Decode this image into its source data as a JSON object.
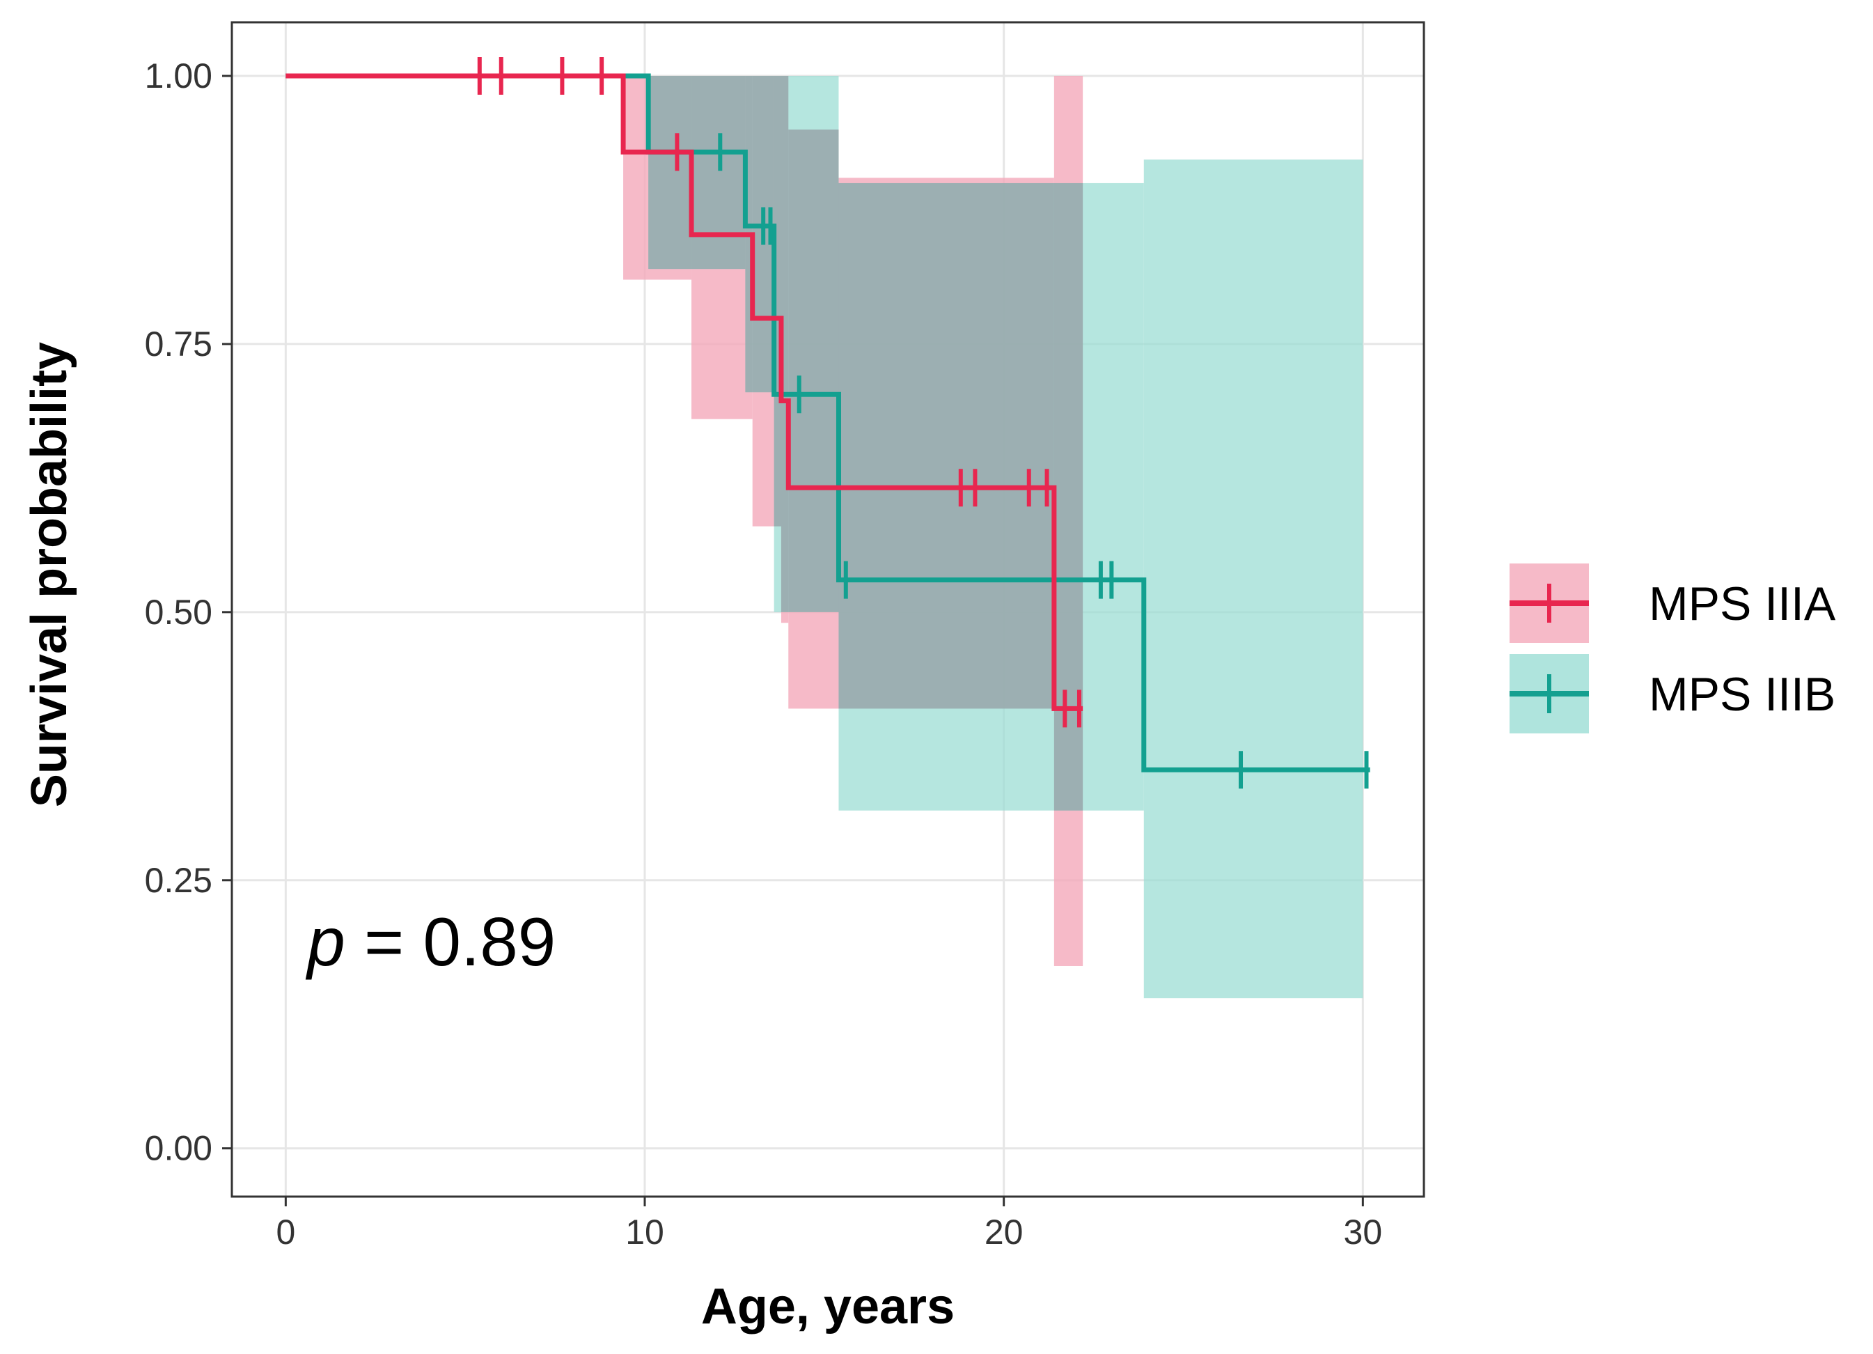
{
  "chart_data": {
    "type": "line",
    "subtype": "kaplan-meier survival curve with confidence bands",
    "title": "",
    "xlabel": "Age, years",
    "ylabel": "Survival probability",
    "xlim": [
      -1.5,
      31.7
    ],
    "ylim": [
      -0.045,
      1.05
    ],
    "x_ticks": [
      0,
      10,
      20,
      30
    ],
    "y_ticks": [
      0.0,
      0.25,
      0.5,
      0.75,
      1.0
    ],
    "x_tick_labels": [
      "0",
      "10",
      "20",
      "30"
    ],
    "y_tick_labels": [
      "0.00",
      "0.25",
      "0.50",
      "0.75",
      "1.00"
    ],
    "grid": true,
    "legend_position": "right",
    "annotation": {
      "italic_part": "p",
      "text": " = 0.89",
      "x": 0.6,
      "y": 0.19
    },
    "series": [
      {
        "name": "MPS IIIA",
        "color": "#e8264f",
        "band_color": "#f3a7b8",
        "steps": [
          [
            0,
            1.0
          ],
          [
            9.4,
            0.929
          ],
          [
            11.3,
            0.852
          ],
          [
            13.0,
            0.774
          ],
          [
            13.8,
            0.697
          ],
          [
            14.0,
            0.616
          ],
          [
            21.4,
            0.41
          ]
        ],
        "end_x": 22.2,
        "censor_x": [
          5.4,
          6.0,
          7.7,
          8.8,
          10.9,
          18.8,
          19.2,
          20.7,
          21.2,
          21.7,
          22.1
        ],
        "band": [
          {
            "x0": 9.4,
            "x1": 11.3,
            "lo": 0.81,
            "hi": 1.0
          },
          {
            "x0": 11.3,
            "x1": 13.0,
            "lo": 0.68,
            "hi": 1.0
          },
          {
            "x0": 13.0,
            "x1": 13.8,
            "lo": 0.58,
            "hi": 1.0
          },
          {
            "x0": 13.8,
            "x1": 14.0,
            "lo": 0.49,
            "hi": 1.0
          },
          {
            "x0": 14.0,
            "x1": 15.4,
            "lo": 0.41,
            "hi": 0.95
          },
          {
            "x0": 15.4,
            "x1": 21.4,
            "lo": 0.41,
            "hi": 0.905
          },
          {
            "x0": 21.4,
            "x1": 22.2,
            "lo": 0.17,
            "hi": 1.0
          }
        ]
      },
      {
        "name": "MPS IIIB",
        "color": "#13a090",
        "band_color": "#98dcd3",
        "steps": [
          [
            0,
            1.0
          ],
          [
            10.1,
            0.929
          ],
          [
            12.8,
            0.86
          ],
          [
            13.6,
            0.703
          ],
          [
            15.4,
            0.53
          ],
          [
            23.9,
            0.353
          ]
        ],
        "end_x": 30.2,
        "censor_x": [
          12.1,
          13.3,
          13.5,
          14.3,
          15.6,
          22.7,
          23.0,
          26.6,
          30.1
        ],
        "band": [
          {
            "x0": 10.1,
            "x1": 12.8,
            "lo": 0.82,
            "hi": 1.0
          },
          {
            "x0": 12.8,
            "x1": 13.6,
            "lo": 0.705,
            "hi": 1.0
          },
          {
            "x0": 13.6,
            "x1": 15.4,
            "lo": 0.5,
            "hi": 1.0
          },
          {
            "x0": 15.4,
            "x1": 23.9,
            "lo": 0.315,
            "hi": 0.9
          },
          {
            "x0": 23.9,
            "x1": 30.0,
            "lo": 0.14,
            "hi": 0.922
          }
        ]
      }
    ]
  }
}
